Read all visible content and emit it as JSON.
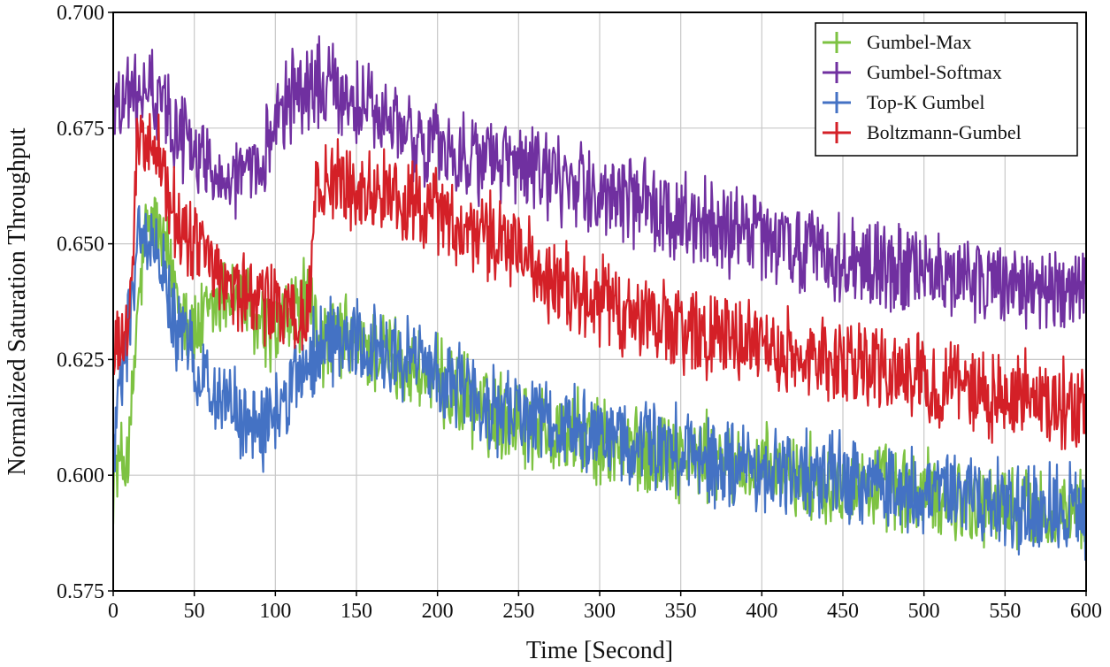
{
  "chart_data": {
    "type": "line",
    "title": "",
    "xlabel": "Time [Second]",
    "ylabel": "Normalized Saturation Throughput",
    "xlim": [
      0,
      600
    ],
    "ylim": [
      0.575,
      0.7
    ],
    "xticks": [
      0,
      50,
      100,
      150,
      200,
      250,
      300,
      350,
      400,
      450,
      500,
      550,
      600
    ],
    "xtick_labels": [
      "0",
      "50",
      "100",
      "150",
      "200",
      "250",
      "300",
      "350",
      "400",
      "450",
      "500",
      "550",
      "600"
    ],
    "yticks": [
      0.575,
      0.6,
      0.625,
      0.65,
      0.675,
      0.7
    ],
    "ytick_labels": [
      "0.575",
      "0.600",
      "0.625",
      "0.650",
      "0.675",
      "0.700"
    ],
    "grid": true,
    "legend_position": "top-right",
    "x": [
      0,
      10,
      15,
      20,
      25,
      30,
      40,
      50,
      60,
      70,
      80,
      90,
      100,
      110,
      120,
      125,
      130,
      140,
      150,
      160,
      170,
      180,
      190,
      200,
      210,
      220,
      230,
      240,
      250,
      260,
      270,
      280,
      290,
      300,
      310,
      320,
      330,
      340,
      350,
      360,
      370,
      380,
      390,
      400,
      410,
      420,
      430,
      440,
      450,
      460,
      470,
      480,
      490,
      500,
      510,
      520,
      530,
      540,
      550,
      560,
      570,
      580,
      590,
      600
    ],
    "series": [
      {
        "name": "Gumbel-Max",
        "color": "#7dc242",
        "values": [
          0.6,
          0.605,
          0.635,
          0.652,
          0.655,
          0.65,
          0.64,
          0.63,
          0.635,
          0.64,
          0.637,
          0.632,
          0.63,
          0.635,
          0.638,
          0.632,
          0.628,
          0.63,
          0.628,
          0.627,
          0.626,
          0.624,
          0.622,
          0.62,
          0.618,
          0.616,
          0.614,
          0.613,
          0.612,
          0.611,
          0.61,
          0.609,
          0.608,
          0.607,
          0.606,
          0.606,
          0.605,
          0.605,
          0.604,
          0.604,
          0.603,
          0.602,
          0.602,
          0.601,
          0.6,
          0.6,
          0.599,
          0.599,
          0.598,
          0.598,
          0.597,
          0.597,
          0.596,
          0.596,
          0.595,
          0.595,
          0.594,
          0.594,
          0.593,
          0.593,
          0.592,
          0.592,
          0.592,
          0.591
        ]
      },
      {
        "name": "Gumbel-Softmax",
        "color": "#7030a0",
        "values": [
          0.68,
          0.682,
          0.681,
          0.683,
          0.682,
          0.68,
          0.675,
          0.67,
          0.667,
          0.665,
          0.664,
          0.663,
          0.68,
          0.682,
          0.683,
          0.684,
          0.684,
          0.683,
          0.681,
          0.678,
          0.676,
          0.674,
          0.672,
          0.671,
          0.67,
          0.669,
          0.668,
          0.667,
          0.666,
          0.665,
          0.664,
          0.663,
          0.662,
          0.661,
          0.66,
          0.659,
          0.658,
          0.657,
          0.656,
          0.655,
          0.654,
          0.653,
          0.652,
          0.651,
          0.65,
          0.649,
          0.648,
          0.647,
          0.646,
          0.646,
          0.645,
          0.645,
          0.644,
          0.644,
          0.643,
          0.643,
          0.642,
          0.642,
          0.641,
          0.641,
          0.64,
          0.64,
          0.639,
          0.639
        ]
      },
      {
        "name": "Top-K Gumbel",
        "color": "#4472c4",
        "values": [
          0.605,
          0.635,
          0.65,
          0.652,
          0.65,
          0.645,
          0.63,
          0.625,
          0.62,
          0.615,
          0.612,
          0.61,
          0.612,
          0.62,
          0.624,
          0.628,
          0.63,
          0.629,
          0.628,
          0.627,
          0.626,
          0.625,
          0.623,
          0.621,
          0.619,
          0.617,
          0.615,
          0.614,
          0.613,
          0.612,
          0.611,
          0.61,
          0.609,
          0.608,
          0.607,
          0.606,
          0.606,
          0.605,
          0.605,
          0.604,
          0.603,
          0.603,
          0.602,
          0.601,
          0.601,
          0.6,
          0.6,
          0.599,
          0.599,
          0.598,
          0.598,
          0.597,
          0.597,
          0.596,
          0.596,
          0.595,
          0.595,
          0.594,
          0.594,
          0.593,
          0.593,
          0.592,
          0.592,
          0.592
        ]
      },
      {
        "name": "Boltzmann-Gumbel",
        "color": "#d42027",
        "values": [
          0.625,
          0.63,
          0.672,
          0.675,
          0.674,
          0.665,
          0.655,
          0.65,
          0.645,
          0.642,
          0.64,
          0.638,
          0.636,
          0.635,
          0.634,
          0.66,
          0.665,
          0.663,
          0.662,
          0.661,
          0.66,
          0.659,
          0.658,
          0.656,
          0.654,
          0.652,
          0.651,
          0.65,
          0.648,
          0.645,
          0.643,
          0.64,
          0.638,
          0.637,
          0.636,
          0.635,
          0.634,
          0.633,
          0.632,
          0.631,
          0.63,
          0.63,
          0.629,
          0.628,
          0.627,
          0.627,
          0.626,
          0.625,
          0.624,
          0.624,
          0.623,
          0.622,
          0.621,
          0.62,
          0.619,
          0.619,
          0.618,
          0.618,
          0.617,
          0.617,
          0.616,
          0.616,
          0.615,
          0.615
        ]
      }
    ]
  }
}
